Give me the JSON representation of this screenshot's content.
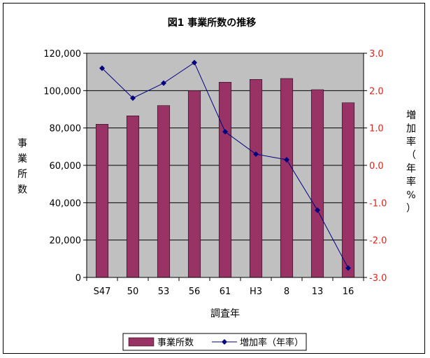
{
  "chart_data": {
    "type": "bar",
    "title": "図1 事業所数の推移",
    "xlabel": "調査年",
    "ylabel": "事業所数",
    "y2label": "増加率（年率%）",
    "categories": [
      "S47",
      "50",
      "53",
      "56",
      "61",
      "H3",
      "8",
      "13",
      "16"
    ],
    "ylim": [
      0,
      120000
    ],
    "y_ticks": [
      "0",
      "20,000",
      "40,000",
      "60,000",
      "80,000",
      "100,000",
      "120,000"
    ],
    "y2lim": [
      -3.0,
      3.0
    ],
    "y2_ticks": [
      "-3.0",
      "-2.0",
      "-1.0",
      "0.0",
      "1.0",
      "2.0",
      "3.0"
    ],
    "series": [
      {
        "name": "事業所数",
        "kind": "bar",
        "axis": "left",
        "values": [
          82000,
          86500,
          92000,
          100000,
          104500,
          106000,
          106500,
          100500,
          93500
        ]
      },
      {
        "name": "増加率（年率）",
        "kind": "line",
        "axis": "right",
        "values": [
          2.6,
          1.8,
          2.2,
          2.75,
          0.9,
          0.3,
          0.15,
          -1.2,
          -2.75
        ]
      }
    ],
    "colors": {
      "bar_fill": "#993366",
      "line": "#000080",
      "plot_bg": "#c0c0c0",
      "right_axis_text": "#e0241b"
    },
    "legend_position": "bottom"
  }
}
